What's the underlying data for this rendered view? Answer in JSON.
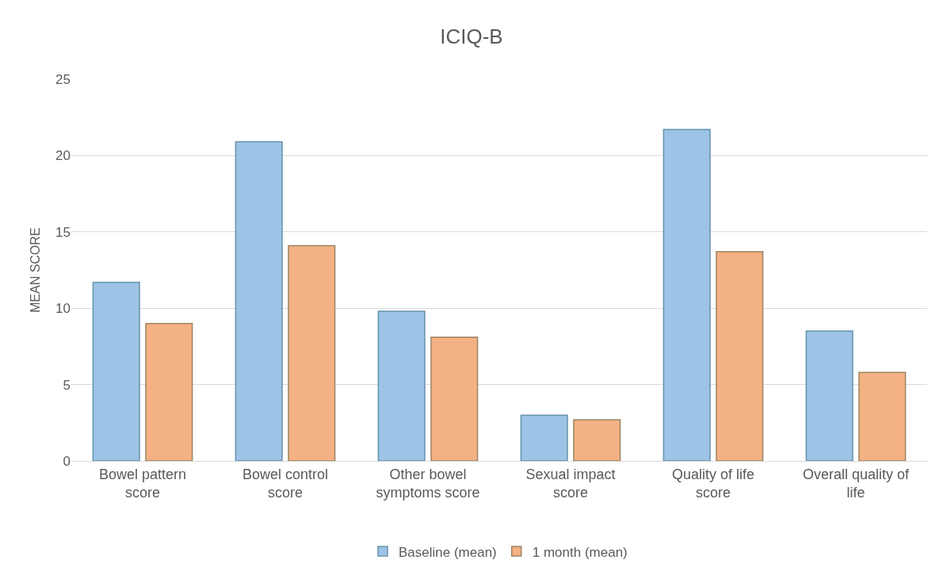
{
  "chart_data": {
    "type": "bar",
    "title": "ICIQ-B",
    "ylabel": "MEAN SCORE",
    "categories": [
      "Bowel pattern score",
      "Bowel control score",
      "Other bowel symptoms score",
      "Sexual impact score",
      "Quality of life score",
      "Overall quality of life"
    ],
    "series": [
      {
        "name": "Baseline (mean)",
        "color": "#9dc3e6",
        "values": [
          11.7,
          20.9,
          9.8,
          3.0,
          21.7,
          8.5
        ]
      },
      {
        "name": "1 month (mean)",
        "color": "#f4b183",
        "values": [
          9.0,
          14.1,
          8.1,
          2.7,
          13.7,
          5.8
        ]
      }
    ],
    "ylim": [
      0,
      25
    ],
    "yticks": [
      0,
      5,
      10,
      15,
      20,
      25
    ],
    "grid": "y",
    "legend": "bottom"
  }
}
